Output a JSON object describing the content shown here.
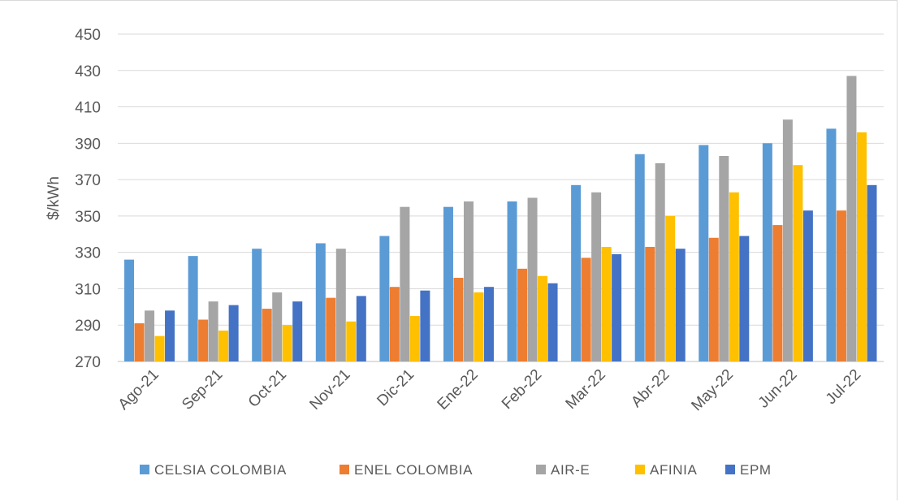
{
  "chart_data": {
    "type": "bar",
    "title": "",
    "xlabel": "",
    "ylabel": "$/kWh",
    "ylim": [
      270,
      450
    ],
    "yticks": [
      270,
      290,
      310,
      330,
      350,
      370,
      390,
      410,
      430,
      450
    ],
    "grid": true,
    "legend_position": "bottom",
    "categories": [
      "Ago-21",
      "Sep-21",
      "Oct-21",
      "Nov-21",
      "Dic-21",
      "Ene-22",
      "Feb-22",
      "Mar-22",
      "Abr-22",
      "May-22",
      "Jun-22",
      "Jul-22"
    ],
    "series": [
      {
        "name": "CELSIA COLOMBIA",
        "color": "#5b9bd5",
        "values": [
          326,
          328,
          332,
          335,
          339,
          355,
          358,
          367,
          384,
          389,
          390,
          398
        ]
      },
      {
        "name": "ENEL COLOMBIA",
        "color": "#ed7d31",
        "values": [
          291,
          293,
          299,
          305,
          311,
          316,
          321,
          327,
          333,
          338,
          345,
          353
        ]
      },
      {
        "name": "AIR-E",
        "color": "#a5a5a5",
        "values": [
          298,
          303,
          308,
          332,
          355,
          358,
          360,
          363,
          379,
          383,
          403,
          427
        ]
      },
      {
        "name": "AFINIA",
        "color": "#ffc000",
        "values": [
          284,
          287,
          290,
          292,
          295,
          308,
          317,
          333,
          350,
          363,
          378,
          396
        ]
      },
      {
        "name": "EPM",
        "color": "#4472c4",
        "values": [
          298,
          301,
          303,
          306,
          309,
          311,
          313,
          329,
          332,
          339,
          353,
          367
        ]
      }
    ]
  }
}
